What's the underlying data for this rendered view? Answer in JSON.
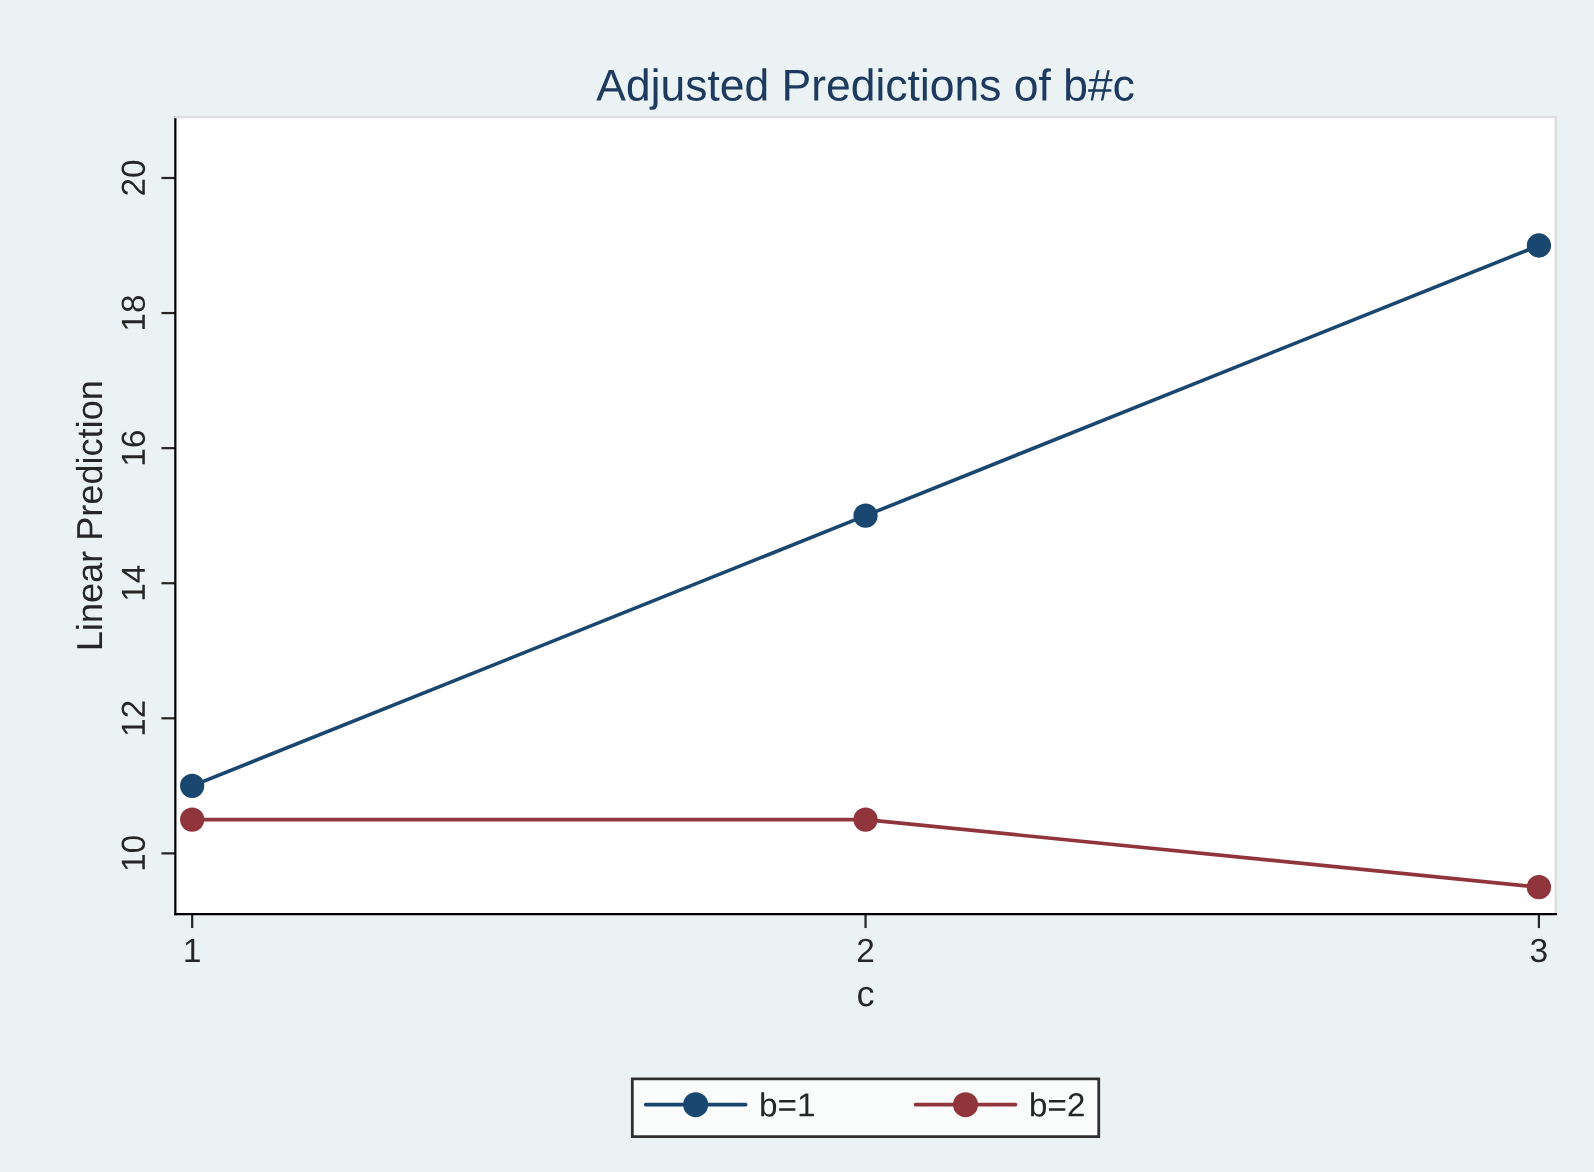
{
  "chart_data": {
    "type": "line",
    "title": "Adjusted Predictions of b#c",
    "xlabel": "c",
    "ylabel": "Linear Prediction",
    "x": [
      1,
      2,
      3
    ],
    "series": [
      {
        "name": "b=1",
        "color": "#1a476f",
        "values": [
          11,
          15,
          19
        ]
      },
      {
        "name": "b=2",
        "color": "#90353b",
        "values": [
          10.5,
          10.5,
          9.5
        ]
      }
    ],
    "xlim": [
      0.975,
      3.025
    ],
    "xticks": [
      1,
      2,
      3
    ],
    "ylim": [
      9.1,
      20.9
    ],
    "yticks": [
      10,
      12,
      14,
      16,
      18,
      20
    ],
    "grid": false,
    "legend": "bottom",
    "marker": "circle",
    "line_style": "solid"
  }
}
